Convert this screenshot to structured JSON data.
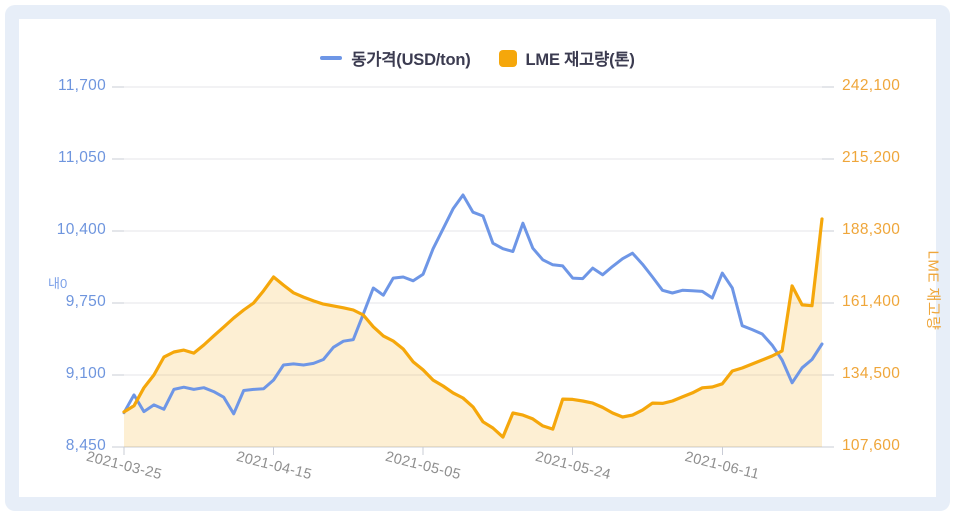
{
  "legend": {
    "price_label": "동가격(USD/ton)",
    "stock_label": "LME 재고량(톤)"
  },
  "axes": {
    "left_title": "내0",
    "right_title": "LME 재고량"
  },
  "colors": {
    "price_line": "#6e96e6",
    "stock_line": "#f5a70b",
    "stock_area_fill": "rgba(245,167,11,0.18)",
    "left_axis_text": "#6e95de",
    "right_axis_text": "#efa63a",
    "x_axis_text": "#8f8f8f",
    "gridline": "#e4e4ea",
    "axis_line": "#c9ccd6",
    "card_border": "#e7eef8",
    "legend_text": "#3b3b50"
  },
  "chart_data": {
    "type": "line",
    "title": "",
    "legend_entries": [
      "동가격(USD/ton)",
      "LME 재고량(톤)"
    ],
    "legend_position": "top-center",
    "grid": true,
    "x_axis": {
      "tick_labels": [
        "2021-03-25",
        "2021-04-15",
        "2021-05-05",
        "2021-05-24",
        "2021-06-11"
      ],
      "tick_indices": [
        0,
        15,
        30,
        45,
        60
      ]
    },
    "left_axis": {
      "title": "내0",
      "tick_labels": [
        "11,700",
        "11,050",
        "10,400",
        "9,750",
        "9,100",
        "8,450"
      ],
      "tick_values": [
        11700,
        11050,
        10400,
        9750,
        9100,
        8450
      ],
      "range": [
        8450,
        11700
      ],
      "color": "#6e95de"
    },
    "right_axis": {
      "title": "LME 재고량",
      "tick_labels": [
        "242,100",
        "215,200",
        "188,300",
        "161,400",
        "134,500",
        "107,600"
      ],
      "tick_values": [
        242100,
        215200,
        188300,
        161400,
        134500,
        107600
      ],
      "range": [
        107600,
        242100
      ],
      "color": "#efa63a"
    },
    "series": [
      {
        "name": "동가격(USD/ton)",
        "axis": "left",
        "style": "line",
        "color": "#6e96e6",
        "values": [
          8760,
          8920,
          8770,
          8830,
          8790,
          8970,
          8990,
          8970,
          8985,
          8950,
          8900,
          8750,
          8960,
          8970,
          8975,
          9055,
          9190,
          9200,
          9190,
          9205,
          9240,
          9350,
          9405,
          9420,
          9650,
          9885,
          9820,
          9975,
          9985,
          9950,
          10010,
          10240,
          10420,
          10600,
          10725,
          10570,
          10535,
          10290,
          10240,
          10215,
          10470,
          10245,
          10140,
          10095,
          10085,
          9975,
          9970,
          10065,
          10005,
          10080,
          10150,
          10200,
          10100,
          9985,
          9865,
          9840,
          9865,
          9860,
          9855,
          9795,
          10020,
          9885,
          9545,
          9510,
          9470,
          9370,
          9235,
          9030,
          9165,
          9240,
          9380
        ]
      },
      {
        "name": "LME 재고량(톤)",
        "axis": "right",
        "style": "area",
        "color": "#f5a70b",
        "fill_color": "rgba(245,167,11,0.18)",
        "values": [
          120700,
          123000,
          129700,
          134500,
          141200,
          143100,
          143800,
          142700,
          145700,
          149100,
          152400,
          155800,
          158800,
          161400,
          166000,
          171100,
          168100,
          165200,
          163600,
          162200,
          161000,
          160300,
          159600,
          158800,
          156900,
          152500,
          149100,
          147200,
          144200,
          139400,
          136400,
          132600,
          130400,
          127800,
          125900,
          122600,
          117000,
          114700,
          111300,
          120300,
          119500,
          118100,
          115500,
          114300,
          125500,
          125400,
          124800,
          124000,
          122400,
          120300,
          118800,
          119500,
          121400,
          124000,
          123900,
          124800,
          126300,
          127800,
          129700,
          130000,
          131200,
          136000,
          137100,
          138600,
          140100,
          141600,
          143500,
          167800,
          160700,
          160400,
          192800
        ]
      }
    ]
  }
}
